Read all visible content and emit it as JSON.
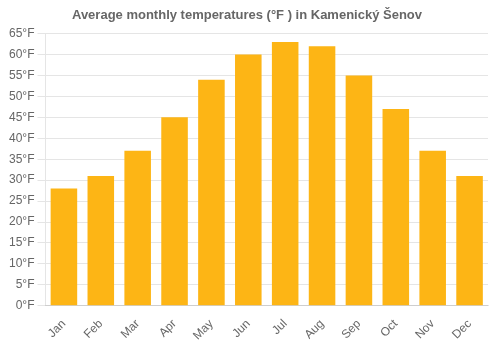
{
  "chart_data": {
    "type": "bar",
    "title": "Average monthly temperatures (°F ) in Kamenický Šenov",
    "categories": [
      "Jan",
      "Feb",
      "Mar",
      "Apr",
      "May",
      "Jun",
      "Jul",
      "Aug",
      "Sep",
      "Oct",
      "Nov",
      "Dec"
    ],
    "values": [
      28,
      31,
      37,
      45,
      54,
      60,
      63,
      62,
      55,
      47,
      37,
      31
    ],
    "color": "#FDB515",
    "ylim": [
      0,
      65
    ],
    "yticks": [
      {
        "value": 0,
        "label": "0°F"
      },
      {
        "value": 5,
        "label": "5°F"
      },
      {
        "value": 10,
        "label": "10°F"
      },
      {
        "value": 15,
        "label": "15°F"
      },
      {
        "value": 20,
        "label": "20°F"
      },
      {
        "value": 25,
        "label": "25°F"
      },
      {
        "value": 30,
        "label": "30°F"
      },
      {
        "value": 35,
        "label": "35°F"
      },
      {
        "value": 40,
        "label": "40°F"
      },
      {
        "value": 45,
        "label": "45°F"
      },
      {
        "value": 50,
        "label": "50°F"
      },
      {
        "value": 55,
        "label": "55°F"
      },
      {
        "value": 60,
        "label": "60°F"
      },
      {
        "value": 65,
        "label": "65°F"
      }
    ],
    "grid": true
  }
}
